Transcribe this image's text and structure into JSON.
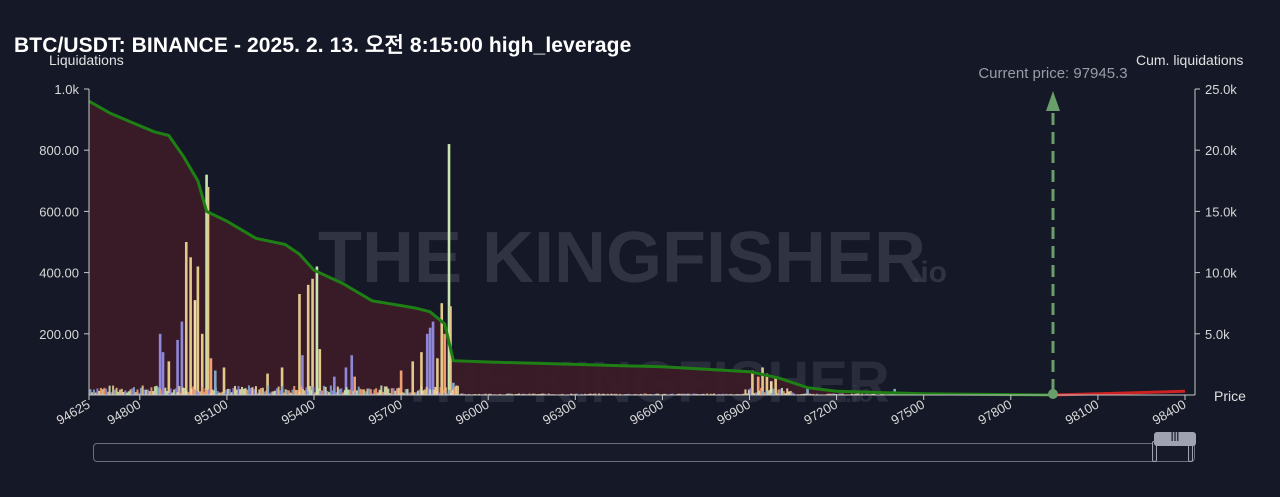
{
  "title": "BTC/USDT: BINANCE - 2025. 2. 13. 오전 8:15:00 high_leverage",
  "watermark": {
    "brand": "THE KINGFISHER",
    "suffix": ".io"
  },
  "current_price_label": "Current price: 97945.3",
  "colors": {
    "background": "#151826",
    "cum_line": "#1d7f14",
    "cum_line_right": "#cc2222",
    "area_fill": "#3b1b28",
    "current_price_arrow": "#6a9e6a",
    "bar_palette": [
      "#f0a070",
      "#e2c98a",
      "#8f88d8",
      "#7fa8c8",
      "#f2d9a8",
      "#c8e6b0"
    ]
  },
  "chart_data": {
    "type": "bar",
    "title": "BTC/USDT: BINANCE - 2025. 2. 13. 오전 8:15:00 high_leverage",
    "xlabel": "Price",
    "ylabel": "Liquidations",
    "y2label": "Cum. liquidations",
    "xlim": [
      94625,
      98400
    ],
    "ylim": [
      0,
      1000
    ],
    "y2lim": [
      0,
      25000
    ],
    "x_ticks": [
      "94625",
      "94800",
      "95100",
      "95400",
      "95700",
      "96000",
      "96300",
      "96600",
      "96900",
      "97200",
      "97500",
      "97800",
      "98100",
      "98400"
    ],
    "y_ticks": [
      "1.0k",
      "800.00",
      "600.00",
      "400.00",
      "200.00"
    ],
    "y2_ticks": [
      "25.0k",
      "20.0k",
      "15.0k",
      "10.0k",
      "5.0k"
    ],
    "current_price": 97945.3,
    "legend": "none",
    "grid": false,
    "tall_bars": [
      {
        "x": 94870,
        "y": 200,
        "color": "#8f88d8"
      },
      {
        "x": 94880,
        "y": 140,
        "color": "#8f88d8"
      },
      {
        "x": 94900,
        "y": 110,
        "color": "#e2c98a"
      },
      {
        "x": 94930,
        "y": 180,
        "color": "#8f88d8"
      },
      {
        "x": 94945,
        "y": 240,
        "color": "#8f88d8"
      },
      {
        "x": 94960,
        "y": 500,
        "color": "#e2c98a"
      },
      {
        "x": 94975,
        "y": 450,
        "color": "#e2c98a"
      },
      {
        "x": 94990,
        "y": 310,
        "color": "#f2d9a8"
      },
      {
        "x": 95000,
        "y": 420,
        "color": "#e2c98a"
      },
      {
        "x": 95015,
        "y": 200,
        "color": "#e2c98a"
      },
      {
        "x": 95030,
        "y": 720,
        "color": "#c8e6b0"
      },
      {
        "x": 95035,
        "y": 680,
        "color": "#e2c98a"
      },
      {
        "x": 95045,
        "y": 120,
        "color": "#f0a070"
      },
      {
        "x": 95060,
        "y": 80,
        "color": "#7fa8c8"
      },
      {
        "x": 95090,
        "y": 90,
        "color": "#e2c98a"
      },
      {
        "x": 95240,
        "y": 70,
        "color": "#e2c98a"
      },
      {
        "x": 95290,
        "y": 90,
        "color": "#e2c98a"
      },
      {
        "x": 95350,
        "y": 330,
        "color": "#e2c98a"
      },
      {
        "x": 95360,
        "y": 130,
        "color": "#8f88d8"
      },
      {
        "x": 95380,
        "y": 360,
        "color": "#e2c98a"
      },
      {
        "x": 95395,
        "y": 380,
        "color": "#e2c98a"
      },
      {
        "x": 95410,
        "y": 420,
        "color": "#c8e6b0"
      },
      {
        "x": 95420,
        "y": 150,
        "color": "#e2c98a"
      },
      {
        "x": 95470,
        "y": 60,
        "color": "#8f88d8"
      },
      {
        "x": 95510,
        "y": 90,
        "color": "#8f88d8"
      },
      {
        "x": 95530,
        "y": 130,
        "color": "#8f88d8"
      },
      {
        "x": 95540,
        "y": 60,
        "color": "#f0a070"
      },
      {
        "x": 95700,
        "y": 80,
        "color": "#f0a070"
      },
      {
        "x": 95740,
        "y": 110,
        "color": "#e2c98a"
      },
      {
        "x": 95770,
        "y": 140,
        "color": "#e2c98a"
      },
      {
        "x": 95790,
        "y": 200,
        "color": "#8f88d8"
      },
      {
        "x": 95800,
        "y": 220,
        "color": "#8f88d8"
      },
      {
        "x": 95810,
        "y": 240,
        "color": "#8f88d8"
      },
      {
        "x": 95825,
        "y": 120,
        "color": "#e2c98a"
      },
      {
        "x": 95840,
        "y": 300,
        "color": "#e2c98a"
      },
      {
        "x": 95850,
        "y": 200,
        "color": "#f0a070"
      },
      {
        "x": 95865,
        "y": 820,
        "color": "#c8e6b0"
      },
      {
        "x": 95870,
        "y": 290,
        "color": "#e2c98a"
      },
      {
        "x": 95880,
        "y": 40,
        "color": "#7fa8c8"
      },
      {
        "x": 96910,
        "y": 80,
        "color": "#e2c98a"
      },
      {
        "x": 96930,
        "y": 60,
        "color": "#f0a070"
      },
      {
        "x": 96945,
        "y": 90,
        "color": "#e2c98a"
      },
      {
        "x": 96960,
        "y": 70,
        "color": "#e2c98a"
      },
      {
        "x": 96975,
        "y": 45,
        "color": "#f2d9a8"
      },
      {
        "x": 96990,
        "y": 55,
        "color": "#e2c98a"
      },
      {
        "x": 97100,
        "y": 25,
        "color": "#7fa8c8"
      },
      {
        "x": 97400,
        "y": 20,
        "color": "#7fa8c8"
      }
    ],
    "cumulative": {
      "x": [
        94625,
        94700,
        94800,
        94850,
        94900,
        94950,
        95000,
        95030,
        95100,
        95200,
        95300,
        95350,
        95400,
        95500,
        95600,
        95700,
        95750,
        95800,
        95850,
        95880,
        96000,
        96300,
        96600,
        96900,
        97000,
        97100,
        97200,
        97500,
        97800,
        97945.3
      ],
      "y": [
        24000,
        23000,
        22000,
        21500,
        21200,
        19500,
        17500,
        15000,
        14200,
        12800,
        12300,
        11500,
        10200,
        9100,
        7700,
        7300,
        7100,
        6800,
        5800,
        2800,
        2700,
        2500,
        2300,
        1900,
        1400,
        600,
        300,
        100,
        30,
        0
      ]
    },
    "right_side_line": {
      "x": [
        97945.3,
        98400
      ],
      "y": [
        0,
        300
      ]
    }
  }
}
